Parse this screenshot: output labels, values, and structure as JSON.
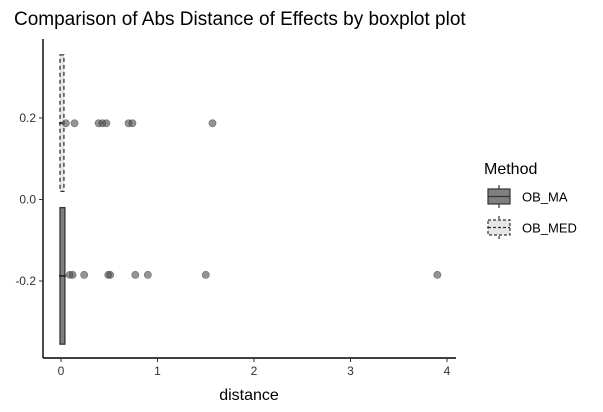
{
  "chart_data": {
    "type": "boxplot",
    "title": "Comparison of Abs Distance of Effects by boxplot plot",
    "xlabel": "distance",
    "ylabel": "",
    "xlim": [
      -0.2,
      4.1
    ],
    "ylim": [
      -0.36,
      0.36
    ],
    "x_ticks": [
      0,
      1,
      2,
      3,
      4
    ],
    "x_tick_labels": [
      "0",
      "1",
      "2",
      "3",
      "4"
    ],
    "y_ticks": [
      -0.2,
      0.0,
      0.2
    ],
    "y_tick_labels": [
      "-0.2",
      "0.0",
      "0.2"
    ],
    "grid": false,
    "legend": {
      "title": "Method",
      "placement": "right"
    },
    "series": [
      {
        "name": "OB_MA",
        "fill": "#7f7f7f",
        "line_style": "solid",
        "y_range": [
          -0.355,
          -0.02
        ],
        "x_box": [
          0.0,
          0.03
        ],
        "outliers": [
          {
            "x": 0.09,
            "y": -0.185
          },
          {
            "x": 0.12,
            "y": -0.185
          },
          {
            "x": 0.24,
            "y": -0.185
          },
          {
            "x": 0.49,
            "y": -0.185
          },
          {
            "x": 0.51,
            "y": -0.185
          },
          {
            "x": 0.77,
            "y": -0.185
          },
          {
            "x": 0.9,
            "y": -0.185
          },
          {
            "x": 1.5,
            "y": -0.185
          },
          {
            "x": 3.9,
            "y": -0.185
          }
        ]
      },
      {
        "name": "OB_MED",
        "fill": "#e6e6e6",
        "line_style": "dashed",
        "y_range": [
          0.02,
          0.355
        ],
        "x_box": [
          0.0,
          0.02
        ],
        "outliers": [
          {
            "x": 0.05,
            "y": 0.187
          },
          {
            "x": 0.14,
            "y": 0.187
          },
          {
            "x": 0.39,
            "y": 0.187
          },
          {
            "x": 0.43,
            "y": 0.187
          },
          {
            "x": 0.47,
            "y": 0.187
          },
          {
            "x": 0.7,
            "y": 0.187
          },
          {
            "x": 0.74,
            "y": 0.187
          },
          {
            "x": 1.57,
            "y": 0.187
          }
        ]
      }
    ]
  }
}
